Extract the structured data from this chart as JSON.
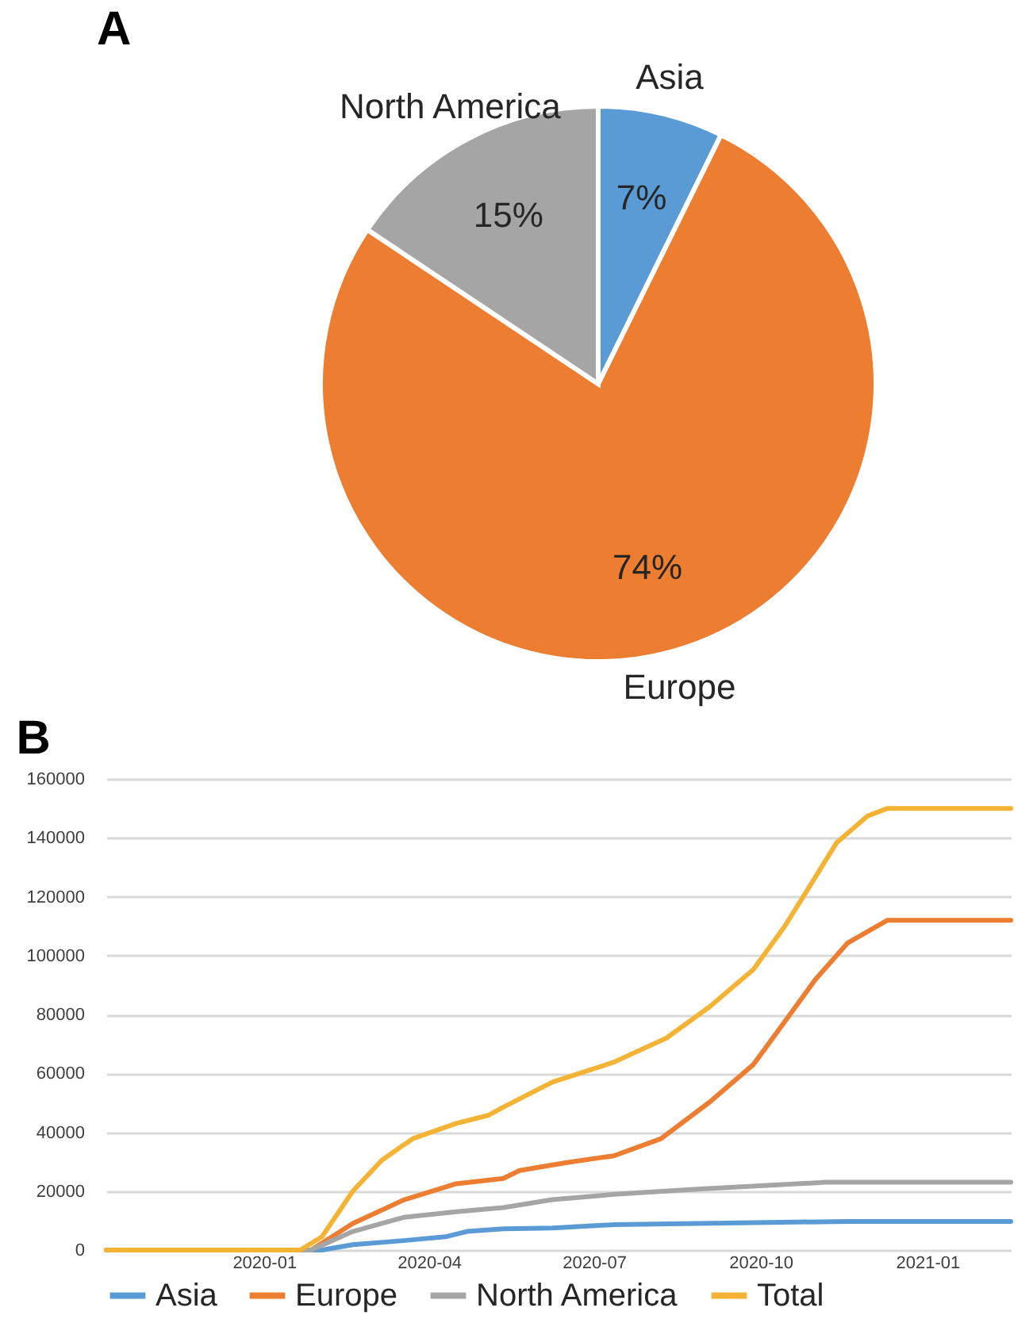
{
  "chart_data": [
    {
      "type": "pie",
      "title": "A",
      "categories": [
        "Asia",
        "Europe",
        "North America"
      ],
      "values": [
        7,
        74,
        15
      ],
      "colors": [
        "#5b9bd5",
        "#ed7d31",
        "#a5a5a5"
      ],
      "value_labels": [
        "7%",
        "74%",
        "15%"
      ],
      "legend": false
    },
    {
      "type": "line",
      "title": "B",
      "xlim": [
        "2019-10-06",
        "2021-02-16"
      ],
      "xticks": [
        "2020-01",
        "2020-04",
        "2020-07",
        "2020-10",
        "2021-01"
      ],
      "ylim": [
        0,
        160000
      ],
      "yticks": [
        0,
        20000,
        40000,
        60000,
        80000,
        100000,
        120000,
        140000,
        160000
      ],
      "grid": "y",
      "legend": "bottom",
      "marker": "none",
      "line_style": "solid",
      "series": [
        {
          "name": "Asia",
          "color": "#5b9bd5",
          "x": [
            "2019-10-06",
            "2020-02-02",
            "2020-02-19",
            "2020-03-18",
            "2020-04-10",
            "2020-04-22",
            "2020-05-12",
            "2020-06-08",
            "2020-07-12",
            "2020-09-27",
            "2020-11-18",
            "2021-02-16"
          ],
          "values": [
            0,
            0,
            1800,
            3200,
            4500,
            6300,
            7200,
            7500,
            8600,
            9300,
            9700,
            9700
          ]
        },
        {
          "name": "Europe",
          "color": "#ed7d31",
          "x": [
            "2019-10-06",
            "2020-01-27",
            "2020-02-19",
            "2020-03-18",
            "2020-04-16",
            "2020-05-12",
            "2020-05-21",
            "2020-06-16",
            "2020-07-12",
            "2020-08-07",
            "2020-09-03",
            "2020-09-27",
            "2020-10-14",
            "2020-10-31",
            "2020-11-18",
            "2020-12-10",
            "2021-02-16"
          ],
          "values": [
            0,
            0,
            9000,
            17000,
            22500,
            24300,
            27000,
            29700,
            32000,
            37800,
            50300,
            63000,
            77300,
            91700,
            104300,
            112000,
            112000
          ]
        },
        {
          "name": "North America",
          "color": "#a5a5a5",
          "x": [
            "2019-10-06",
            "2020-01-27",
            "2020-02-19",
            "2020-03-18",
            "2020-04-16",
            "2020-05-12",
            "2020-06-08",
            "2020-07-12",
            "2020-08-27",
            "2020-11-06",
            "2021-02-16"
          ],
          "values": [
            0,
            0,
            6300,
            11100,
            13000,
            14400,
            17100,
            18900,
            20700,
            23000,
            23000
          ]
        },
        {
          "name": "Total",
          "color": "#f5b335",
          "x": [
            "2019-10-06",
            "2020-01-21",
            "2020-02-02",
            "2020-02-19",
            "2020-03-06",
            "2020-03-23",
            "2020-04-16",
            "2020-05-04",
            "2020-05-12",
            "2020-06-08",
            "2020-07-12",
            "2020-08-10",
            "2020-09-03",
            "2020-09-27",
            "2020-10-14",
            "2020-10-25",
            "2020-11-12",
            "2020-11-29",
            "2020-12-10",
            "2021-02-16"
          ],
          "values": [
            0,
            0,
            4500,
            20000,
            30500,
            37800,
            43000,
            45800,
            48500,
            57000,
            63800,
            72000,
            82700,
            95300,
            109700,
            120500,
            138400,
            147400,
            150000,
            150000
          ]
        }
      ]
    }
  ]
}
